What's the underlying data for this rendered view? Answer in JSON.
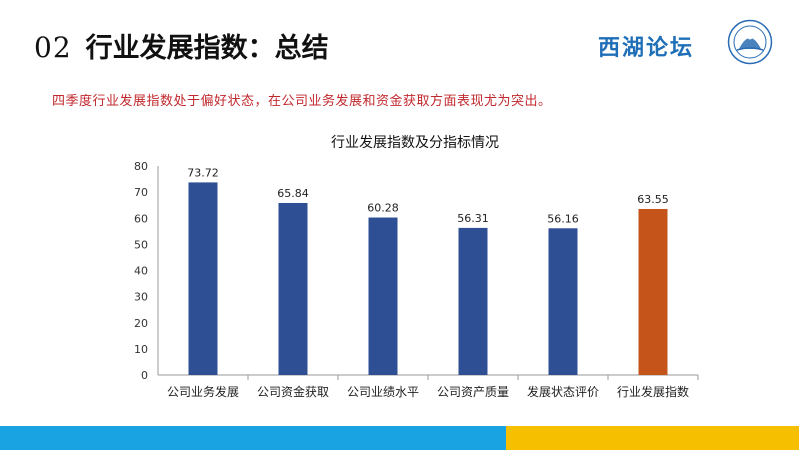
{
  "header": {
    "number": "02",
    "title": "行业发展指数：总结"
  },
  "brand": {
    "name": "西湖论坛",
    "logo_icon": "emblem-icon"
  },
  "summary_text": "四季度行业发展指数处于偏好状态，在公司业务发展和资金获取方面表现尤为突出。",
  "colors": {
    "bar_blue": "#2f4f95",
    "bar_orange": "#c5541a",
    "summary_red": "#c0282d",
    "footer_blue": "#1aa3e3",
    "footer_yellow": "#f6c000"
  },
  "chart_data": {
    "type": "bar",
    "title": "行业发展指数及分指标情况",
    "categories": [
      "公司业务发展",
      "公司资金获取",
      "公司业绩水平",
      "公司资产质量",
      "发展状态评价",
      "行业发展指数"
    ],
    "values": [
      73.72,
      65.84,
      60.28,
      56.31,
      56.16,
      63.55
    ],
    "value_labels": [
      "73.72",
      "65.84",
      "60.28",
      "56.31",
      "56.16",
      "63.55"
    ],
    "highlight_index": 5,
    "ylim": [
      0,
      80
    ],
    "yticks": [
      "0",
      "10",
      "20",
      "30",
      "40",
      "50",
      "60",
      "70",
      "80"
    ],
    "grid": false,
    "xlabel": "",
    "ylabel": ""
  }
}
